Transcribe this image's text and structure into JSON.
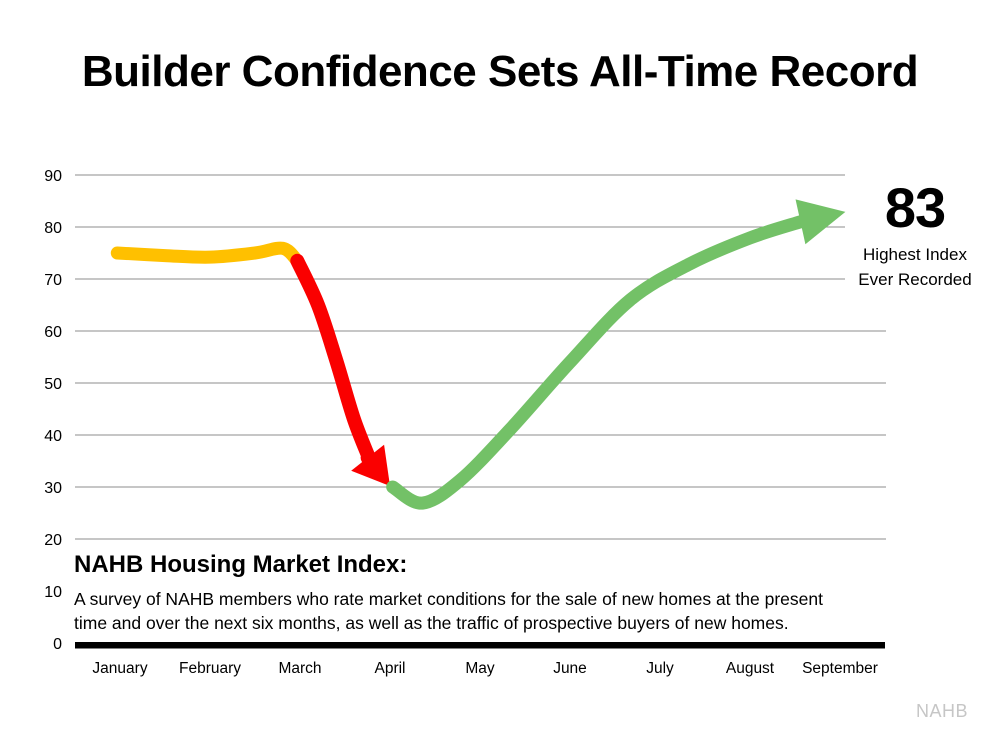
{
  "title": "Builder Confidence Sets All-Time Record",
  "watermark": "NAHB",
  "note": {
    "heading": "NAHB Housing Market Index:",
    "lines": [
      "A survey of NAHB members who rate market conditions for the sale of new homes at the present",
      "time and over the next six months, as well as the traffic of prospective buyers of new homes."
    ]
  },
  "colors": {
    "gold": "#FFC000",
    "red": "#FA0000",
    "green": "#73C167",
    "gridline": "#8C8C8C",
    "axis": "#000000",
    "text": "#000000",
    "watermark": "#C6C6C6"
  },
  "chart_data": {
    "type": "line",
    "title": "Builder Confidence Sets All-Time Record",
    "xlabel": "",
    "ylabel": "",
    "categories": [
      "January",
      "February",
      "March",
      "April",
      "May",
      "June",
      "July",
      "August",
      "September"
    ],
    "series": [
      {
        "name": "NAHB Housing Market Index",
        "values": [
          75,
          74,
          75,
          30,
          34,
          54,
          72,
          78,
          83
        ]
      }
    ],
    "ylim": [
      0,
      90
    ],
    "yticks": [
      90,
      80,
      70,
      60,
      50,
      40,
      30,
      20,
      10,
      0
    ],
    "grid": "horizontal-only, no gridline at 10, heavy black baseline at 0",
    "legend": "none",
    "annotation": {
      "value": "83",
      "label_lines": [
        "Highest Index",
        "Ever Recorded"
      ]
    },
    "styled_segments": [
      {
        "name": "pre-pandemic-gold",
        "color_key": "gold",
        "width": 13,
        "arrow": false,
        "points": [
          [
            -0.03,
            75.0
          ],
          [
            0.5,
            74.5
          ],
          [
            1.0,
            74.2
          ],
          [
            1.5,
            75.0
          ],
          [
            1.81,
            75.9
          ],
          [
            1.97,
            73.5
          ]
        ]
      },
      {
        "name": "crash-red-arrow",
        "color_key": "red",
        "width": 14,
        "arrow": true,
        "head": {
          "len": 36,
          "halfw": 21
        },
        "points": [
          [
            1.97,
            73.5
          ],
          [
            2.2,
            65.0
          ],
          [
            2.4,
            54.5
          ],
          [
            2.6,
            43.0
          ],
          [
            2.78,
            35.0
          ],
          [
            3.0,
            30.2
          ]
        ]
      },
      {
        "name": "recovery-green-arrow",
        "color_key": "green",
        "width": 13,
        "arrow": true,
        "head": {
          "len": 46,
          "halfw": 23
        },
        "points": [
          [
            3.03,
            30.0
          ],
          [
            3.36,
            26.9
          ],
          [
            3.78,
            31.3
          ],
          [
            4.33,
            41.0
          ],
          [
            5.0,
            54.0
          ],
          [
            5.67,
            66.0
          ],
          [
            6.33,
            72.9
          ],
          [
            7.0,
            77.9
          ],
          [
            7.56,
            81.0
          ],
          [
            8.06,
            82.9
          ]
        ]
      }
    ]
  }
}
